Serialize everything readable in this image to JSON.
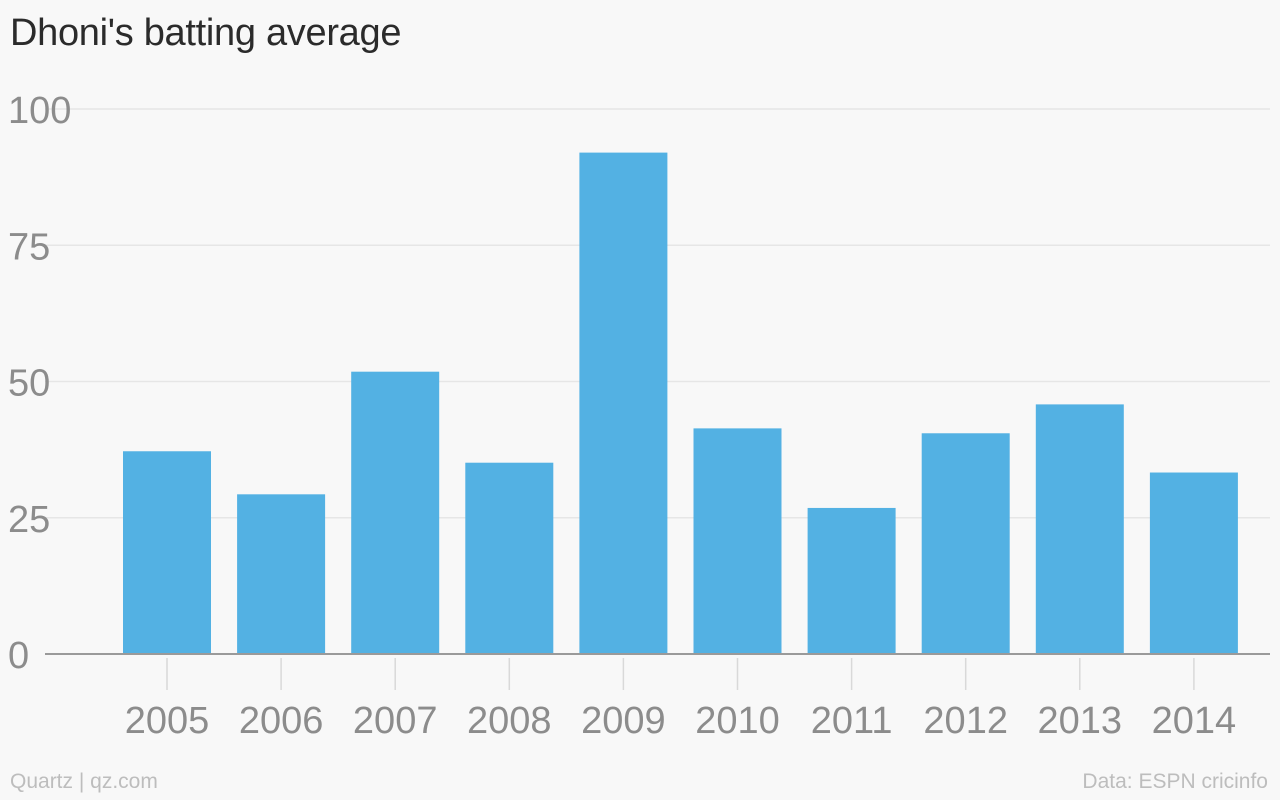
{
  "chart_data": {
    "type": "bar",
    "title": "Dhoni's batting average",
    "categories": [
      "2005",
      "2006",
      "2007",
      "2008",
      "2009",
      "2010",
      "2011",
      "2012",
      "2013",
      "2014"
    ],
    "values": [
      37.2,
      29.3,
      51.8,
      35.1,
      92.0,
      41.4,
      26.8,
      40.5,
      45.8,
      33.3
    ],
    "xlabel": "",
    "ylabel": "",
    "ylim": [
      0,
      100
    ],
    "yticks": [
      0,
      25,
      50,
      75,
      100
    ],
    "grid": true,
    "legend": "none",
    "colors": {
      "bar": "#53b1e3",
      "grid": "#e6e6e6",
      "axis": "#9a9a9a",
      "tick_label": "#8c8c8c",
      "x_tick_mark": "#d9d9d9"
    }
  },
  "footer": {
    "source_left": "Quartz | qz.com",
    "source_right": "Data: ESPN cricinfo"
  }
}
